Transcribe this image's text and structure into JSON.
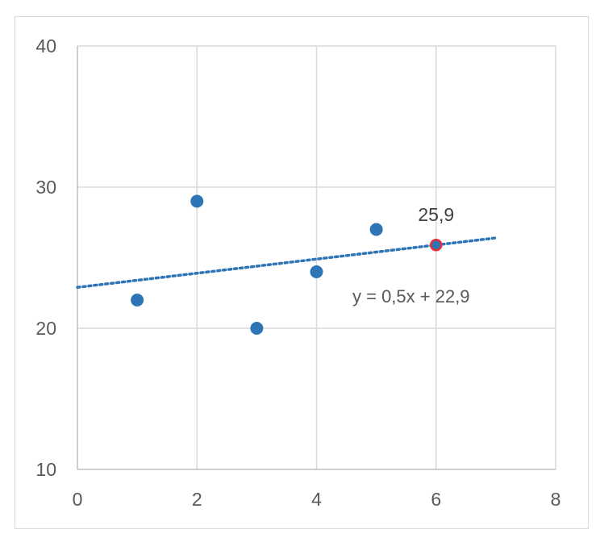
{
  "chart_data": {
    "type": "scatter",
    "title": "",
    "xlabel": "",
    "ylabel": "",
    "xlim": [
      0,
      8
    ],
    "ylim": [
      10,
      40
    ],
    "x_ticks": [
      "0",
      "2",
      "4",
      "6",
      "8"
    ],
    "y_ticks": [
      "10",
      "20",
      "30",
      "40"
    ],
    "grid": true,
    "legend": "none",
    "series": [
      {
        "x": [
          1,
          2,
          3,
          4,
          5
        ],
        "y": [
          22,
          29,
          20,
          24,
          27
        ],
        "color": "#2e75b6"
      }
    ],
    "highlight_point": {
      "x": 6,
      "y": 25.9,
      "label": "25,9",
      "fill": "#2e75b6",
      "stroke": "#e0303a"
    },
    "trendline": {
      "slope": 0.5,
      "intercept": 22.9,
      "x_range": [
        0,
        7
      ],
      "equation": "y = 0,5x + 22,9",
      "color": "#2e75b6",
      "style": "dotted"
    },
    "colors": {
      "grid": "#d9d9d9",
      "axis": "#bfbfbf",
      "tick_text": "#595959"
    }
  }
}
